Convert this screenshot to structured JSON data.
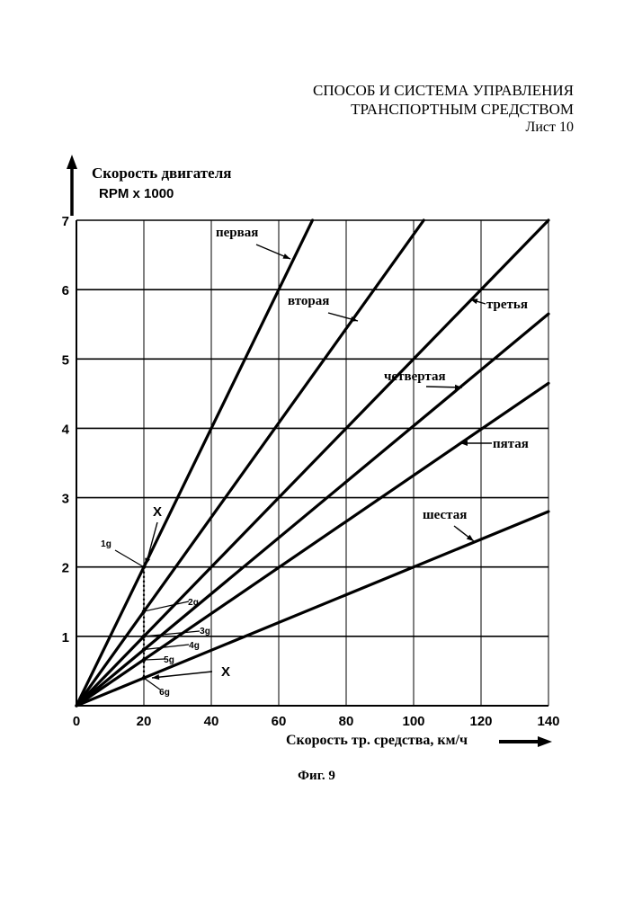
{
  "header": {
    "title_line1": "СПОСОБ И СИСТЕМА УПРАВЛЕНИЯ",
    "title_line2": "ТРАНСПОРТНЫМ СРЕДСТВОМ",
    "sheet": "Лист 10"
  },
  "figure_caption": "Фиг. 9",
  "chart_data": {
    "type": "line",
    "ylabel": "Скорость двигателя",
    "ylabel_units": "RPM x 1000",
    "xlabel": "Скорость тр. средства, км/ч",
    "xlim": [
      0,
      140
    ],
    "ylim": [
      0,
      7
    ],
    "x_ticks": [
      "0",
      "20",
      "40",
      "60",
      "80",
      "100",
      "120",
      "140"
    ],
    "y_ticks": [
      "1",
      "2",
      "3",
      "4",
      "5",
      "6",
      "7"
    ],
    "grid": true,
    "series": [
      {
        "name": "первая",
        "x": [
          0,
          70
        ],
        "y": [
          0,
          7
        ]
      },
      {
        "name": "вторая",
        "x": [
          0,
          103
        ],
        "y": [
          0,
          7
        ]
      },
      {
        "name": "третья",
        "x": [
          0,
          140
        ],
        "y": [
          0,
          7
        ]
      },
      {
        "name": "четвертая",
        "x": [
          0,
          140
        ],
        "y": [
          0,
          5.65
        ]
      },
      {
        "name": "пятая",
        "x": [
          0,
          140
        ],
        "y": [
          0,
          4.65
        ]
      },
      {
        "name": "шестая",
        "x": [
          0,
          140
        ],
        "y": [
          0,
          2.8
        ]
      }
    ],
    "annotations": {
      "marker_x": "X",
      "marker_at_x": 20,
      "gear_points": [
        {
          "label": "1g",
          "x": 20,
          "y": 2.0
        },
        {
          "label": "2g",
          "x": 20,
          "y": 1.36
        },
        {
          "label": "3g",
          "x": 20,
          "y": 1.0
        },
        {
          "label": "4g",
          "x": 20,
          "y": 0.81
        },
        {
          "label": "5g",
          "x": 20,
          "y": 0.66
        },
        {
          "label": "6g",
          "x": 20,
          "y": 0.4
        }
      ]
    }
  }
}
